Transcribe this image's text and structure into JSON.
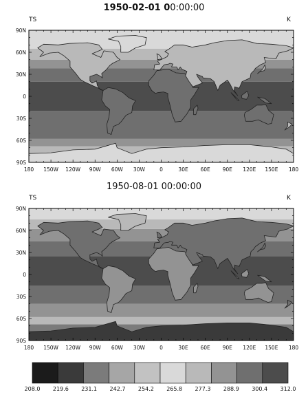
{
  "chart_data": [
    {
      "type": "heatmap",
      "title": "1950-02-01 00:00:00",
      "title_bold": "1950-02-01 0",
      "title_rest": "0:00:00",
      "variable": "TS",
      "units": "K",
      "x_ticks": [
        "180",
        "150W",
        "120W",
        "90W",
        "60W",
        "30W",
        "0",
        "30E",
        "60E",
        "90E",
        "120E",
        "150E",
        "180"
      ],
      "y_ticks": [
        "90N",
        "60N",
        "30N",
        "0",
        "30S",
        "60S",
        "90S"
      ],
      "xlim": [
        -180,
        180
      ],
      "ylim": [
        -90,
        90
      ],
      "zonal_bands": [
        {
          "lat": [
            -90,
            -80
          ],
          "level": 5
        },
        {
          "lat": [
            -80,
            -68
          ],
          "level": 6
        },
        {
          "lat": [
            -68,
            -58
          ],
          "level": 7
        },
        {
          "lat": [
            -58,
            -45
          ],
          "level": 8
        },
        {
          "lat": [
            -45,
            -20
          ],
          "level": 8
        },
        {
          "lat": [
            -20,
            20
          ],
          "level": 9
        },
        {
          "lat": [
            20,
            38
          ],
          "level": 8
        },
        {
          "lat": [
            38,
            50
          ],
          "level": 7
        },
        {
          "lat": [
            50,
            65
          ],
          "level": 6
        },
        {
          "lat": [
            65,
            90
          ],
          "level": 5
        }
      ]
    },
    {
      "type": "heatmap",
      "title": "1950-08-01 00:00:00",
      "variable": "TS",
      "units": "K",
      "x_ticks": [
        "180",
        "150W",
        "120W",
        "90W",
        "60W",
        "30W",
        "0",
        "30E",
        "60E",
        "90E",
        "120E",
        "150E",
        "180"
      ],
      "y_ticks": [
        "90N",
        "60N",
        "30N",
        "0",
        "30S",
        "60S",
        "90S"
      ],
      "xlim": [
        -180,
        180
      ],
      "ylim": [
        -90,
        90
      ],
      "zonal_bands": [
        {
          "lat": [
            -90,
            -78
          ],
          "level": 0
        },
        {
          "lat": [
            -78,
            -68
          ],
          "level": 2
        },
        {
          "lat": [
            -68,
            -58
          ],
          "level": 6
        },
        {
          "lat": [
            -58,
            -40
          ],
          "level": 7
        },
        {
          "lat": [
            -40,
            -15
          ],
          "level": 8
        },
        {
          "lat": [
            -15,
            25
          ],
          "level": 9
        },
        {
          "lat": [
            25,
            45
          ],
          "level": 8
        },
        {
          "lat": [
            45,
            62
          ],
          "level": 7
        },
        {
          "lat": [
            62,
            75
          ],
          "level": 6
        },
        {
          "lat": [
            75,
            90
          ],
          "level": 5
        }
      ]
    }
  ],
  "colorbar": {
    "levels": [
      "208.0",
      "219.6",
      "231.1",
      "242.7",
      "254.2",
      "265.8",
      "277.3",
      "288.9",
      "300.4",
      "312.0"
    ],
    "colors": [
      "#1b1b1b",
      "#3a3a3a",
      "#7b7b7b",
      "#a6a6a6",
      "#c2c2c2",
      "#d9d9d9",
      "#b9b9b9",
      "#939393",
      "#6f6f6f",
      "#4c4c4c"
    ]
  }
}
